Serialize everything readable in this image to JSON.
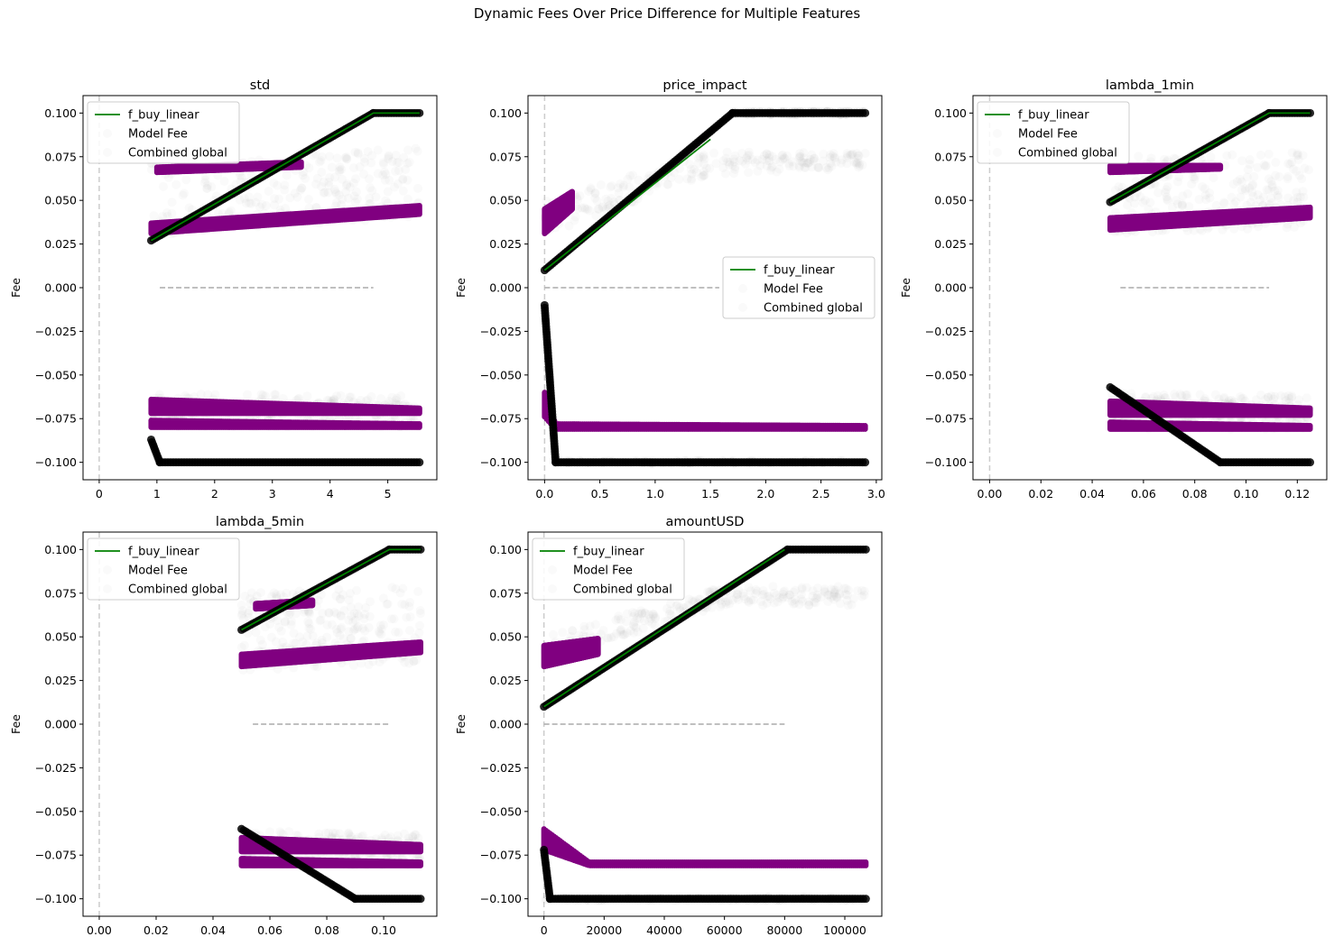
{
  "figure": {
    "title": "Dynamic Fees Over Price Difference for Multiple Features"
  },
  "colors": {
    "f_buy_linear": "#008000",
    "model_fee": "#800080",
    "combined_global": "#000000",
    "zero_line": "#aaaaaa",
    "vline": "#cccccc"
  },
  "chart_data": [
    {
      "type": "scatter",
      "title": "std",
      "xlabel": "",
      "ylabel": "Fee",
      "xlim": [
        -0.28,
        5.85
      ],
      "ylim": [
        -0.11,
        0.11
      ],
      "xticks": [
        "0",
        "1",
        "2",
        "3",
        "4",
        "5"
      ],
      "xtick_values": [
        0,
        1,
        2,
        3,
        4,
        5
      ],
      "yticks": [
        "0.100",
        "0.075",
        "0.050",
        "0.025",
        "0.000",
        "−0.025",
        "−0.050",
        "−0.075",
        "−0.100"
      ],
      "legend": {
        "placement": "upper-left",
        "entries": [
          "f_buy_linear",
          "Model Fee",
          "Combined global"
        ]
      },
      "vline_x": 0,
      "series": [
        {
          "name": "f_buy_linear",
          "kind": "line",
          "x": [
            0.9,
            4.75,
            5.55
          ],
          "y": [
            0.027,
            0.1,
            0.1
          ]
        },
        {
          "name": "Combined global",
          "kind": "points",
          "x": [
            0.9,
            4.75,
            5.55
          ],
          "y": [
            0.027,
            0.1,
            0.1
          ]
        },
        {
          "name": "Combined global sell",
          "kind": "points",
          "x": [
            0.9,
            1.05,
            5.55
          ],
          "y": [
            -0.087,
            -0.1,
            -0.1
          ]
        },
        {
          "name": "Model Fee band",
          "kind": "band",
          "x": [
            0.9,
            5.55
          ],
          "ylow": [
            0.031,
            0.042
          ],
          "yhigh": [
            0.037,
            0.047
          ]
        },
        {
          "name": "Model Fee band 2",
          "kind": "band",
          "x": [
            1.0,
            3.5
          ],
          "ylow": [
            0.066,
            0.069
          ],
          "yhigh": [
            0.069,
            0.072
          ]
        },
        {
          "name": "Model Fee sell",
          "kind": "band",
          "x": [
            0.9,
            5.55
          ],
          "ylow": [
            -0.08,
            -0.08
          ],
          "yhigh": [
            -0.076,
            -0.078
          ]
        },
        {
          "name": "Model Fee sell 2",
          "kind": "band",
          "x": [
            0.9,
            5.55
          ],
          "ylow": [
            -0.072,
            -0.072
          ],
          "yhigh": [
            -0.064,
            -0.069
          ]
        },
        {
          "name": "faint buy",
          "kind": "faint",
          "x": [
            0.9,
            5.55
          ],
          "ylow": [
            0.03,
            0.04
          ],
          "yhigh": [
            0.075,
            0.08
          ]
        },
        {
          "name": "faint sell",
          "kind": "faint",
          "x": [
            0.9,
            5.55
          ],
          "ylow": [
            -0.08,
            -0.08
          ],
          "yhigh": [
            -0.06,
            -0.062
          ]
        },
        {
          "name": "zero",
          "kind": "zero",
          "x": [
            1.05,
            4.75
          ]
        }
      ]
    },
    {
      "type": "scatter",
      "title": "price_impact",
      "xlabel": "",
      "ylabel": "Fee",
      "xlim": [
        -0.15,
        3.05
      ],
      "ylim": [
        -0.11,
        0.11
      ],
      "xticks": [
        "0.0",
        "0.5",
        "1.0",
        "1.5",
        "2.0",
        "2.5",
        "3.0"
      ],
      "xtick_values": [
        0,
        0.5,
        1.0,
        1.5,
        2.0,
        2.5,
        3.0
      ],
      "yticks": [
        "0.100",
        "0.075",
        "0.050",
        "0.025",
        "0.000",
        "−0.025",
        "−0.050",
        "−0.075",
        "−0.100"
      ],
      "legend": {
        "placement": "center-right",
        "entries": [
          "f_buy_linear",
          "Model Fee",
          "Combined global"
        ]
      },
      "vline_x": 0,
      "series": [
        {
          "name": "f_buy_linear",
          "kind": "line",
          "x": [
            0.0,
            1.5
          ],
          "y": [
            0.01,
            0.085
          ]
        },
        {
          "name": "Combined global",
          "kind": "points",
          "x": [
            0.0,
            1.7,
            2.9
          ],
          "y": [
            0.01,
            0.1,
            0.1
          ]
        },
        {
          "name": "Combined global sell",
          "kind": "points",
          "x": [
            0.0,
            0.1,
            2.9
          ],
          "y": [
            -0.01,
            -0.1,
            -0.1
          ]
        },
        {
          "name": "Model Fee band",
          "kind": "band",
          "x": [
            0.0,
            0.25
          ],
          "ylow": [
            0.031,
            0.045
          ],
          "yhigh": [
            0.045,
            0.055
          ]
        },
        {
          "name": "Model Fee sell",
          "kind": "band",
          "x": [
            0.0,
            0.1,
            2.9
          ],
          "ylow": [
            -0.074,
            -0.081,
            -0.081
          ],
          "yhigh": [
            -0.06,
            -0.078,
            -0.079
          ]
        },
        {
          "name": "faint buy",
          "kind": "faint",
          "x": [
            0.0,
            1.5,
            2.9
          ],
          "ylow": [
            0.03,
            0.065,
            0.068
          ],
          "yhigh": [
            0.05,
            0.078,
            0.077
          ]
        },
        {
          "name": "faint buy top",
          "kind": "faint",
          "x": [
            1.7,
            2.9
          ],
          "ylow": [
            0.099,
            0.099
          ],
          "yhigh": [
            0.101,
            0.101
          ]
        },
        {
          "name": "faint sell",
          "kind": "faint",
          "x": [
            0.1,
            2.9
          ],
          "ylow": [
            -0.101,
            -0.101
          ],
          "yhigh": [
            -0.099,
            -0.099
          ]
        },
        {
          "name": "zero",
          "kind": "zero",
          "x": [
            0.0,
            1.58
          ]
        }
      ]
    },
    {
      "type": "scatter",
      "title": "lambda_1min",
      "xlabel": "",
      "ylabel": "Fee",
      "xlim": [
        -0.0065,
        0.1315
      ],
      "ylim": [
        -0.11,
        0.11
      ],
      "xticks": [
        "0.00",
        "0.02",
        "0.04",
        "0.06",
        "0.08",
        "0.10",
        "0.12"
      ],
      "xtick_values": [
        0,
        0.02,
        0.04,
        0.06,
        0.08,
        0.1,
        0.12
      ],
      "yticks": [
        "0.100",
        "0.075",
        "0.050",
        "0.025",
        "0.000",
        "−0.025",
        "−0.050",
        "−0.075",
        "−0.100"
      ],
      "legend": {
        "placement": "upper-left",
        "entries": [
          "f_buy_linear",
          "Model Fee",
          "Combined global"
        ]
      },
      "vline_x": 0,
      "series": [
        {
          "name": "f_buy_linear",
          "kind": "line",
          "x": [
            0.047,
            0.109,
            0.125
          ],
          "y": [
            0.049,
            0.1,
            0.1
          ]
        },
        {
          "name": "Combined global",
          "kind": "points",
          "x": [
            0.047,
            0.109,
            0.125
          ],
          "y": [
            0.049,
            0.1,
            0.1
          ]
        },
        {
          "name": "Combined global sell",
          "kind": "points",
          "x": [
            0.047,
            0.09,
            0.125
          ],
          "y": [
            -0.057,
            -0.1,
            -0.1
          ]
        },
        {
          "name": "Model Fee band",
          "kind": "band",
          "x": [
            0.047,
            0.125
          ],
          "ylow": [
            0.033,
            0.04
          ],
          "yhigh": [
            0.04,
            0.046
          ]
        },
        {
          "name": "Model Fee band 2",
          "kind": "band",
          "x": [
            0.047,
            0.09
          ],
          "ylow": [
            0.066,
            0.068
          ],
          "yhigh": [
            0.07,
            0.07
          ]
        },
        {
          "name": "Model Fee sell",
          "kind": "band",
          "x": [
            0.047,
            0.125
          ],
          "ylow": [
            -0.081,
            -0.081
          ],
          "yhigh": [
            -0.077,
            -0.079
          ]
        },
        {
          "name": "Model Fee sell 2",
          "kind": "band",
          "x": [
            0.047,
            0.125
          ],
          "ylow": [
            -0.073,
            -0.073
          ],
          "yhigh": [
            -0.065,
            -0.069
          ]
        },
        {
          "name": "faint buy",
          "kind": "faint",
          "x": [
            0.047,
            0.125
          ],
          "ylow": [
            0.03,
            0.035
          ],
          "yhigh": [
            0.075,
            0.078
          ]
        },
        {
          "name": "faint sell",
          "kind": "faint",
          "x": [
            0.047,
            0.125
          ],
          "ylow": [
            -0.081,
            -0.081
          ],
          "yhigh": [
            -0.06,
            -0.062
          ]
        },
        {
          "name": "zero",
          "kind": "zero",
          "x": [
            0.051,
            0.109
          ]
        }
      ]
    },
    {
      "type": "scatter",
      "title": "lambda_5min",
      "xlabel": "",
      "ylabel": "Fee",
      "xlim": [
        -0.0057,
        0.1187
      ],
      "ylim": [
        -0.11,
        0.11
      ],
      "xticks": [
        "0.00",
        "0.02",
        "0.04",
        "0.06",
        "0.08",
        "0.10"
      ],
      "xtick_values": [
        0,
        0.02,
        0.04,
        0.06,
        0.08,
        0.1
      ],
      "yticks": [
        "0.100",
        "0.075",
        "0.050",
        "0.025",
        "0.000",
        "−0.025",
        "−0.050",
        "−0.075",
        "−0.100"
      ],
      "legend": {
        "placement": "upper-left",
        "entries": [
          "f_buy_linear",
          "Model Fee",
          "Combined global"
        ]
      },
      "vline_x": 0,
      "series": [
        {
          "name": "f_buy_linear",
          "kind": "line",
          "x": [
            0.05,
            0.102,
            0.113
          ],
          "y": [
            0.054,
            0.1,
            0.1
          ]
        },
        {
          "name": "Combined global",
          "kind": "points",
          "x": [
            0.05,
            0.102,
            0.113
          ],
          "y": [
            0.054,
            0.1,
            0.1
          ]
        },
        {
          "name": "Combined global sell",
          "kind": "points",
          "x": [
            0.05,
            0.09,
            0.113
          ],
          "y": [
            -0.06,
            -0.1,
            -0.1
          ]
        },
        {
          "name": "Model Fee band",
          "kind": "band",
          "x": [
            0.05,
            0.113
          ],
          "ylow": [
            0.033,
            0.041
          ],
          "yhigh": [
            0.04,
            0.047
          ]
        },
        {
          "name": "Model Fee band 2",
          "kind": "band",
          "x": [
            0.055,
            0.075
          ],
          "ylow": [
            0.066,
            0.068
          ],
          "yhigh": [
            0.069,
            0.071
          ]
        },
        {
          "name": "Model Fee sell",
          "kind": "band",
          "x": [
            0.05,
            0.113
          ],
          "ylow": [
            -0.081,
            -0.081
          ],
          "yhigh": [
            -0.077,
            -0.079
          ]
        },
        {
          "name": "Model Fee sell 2",
          "kind": "band",
          "x": [
            0.05,
            0.113
          ],
          "ylow": [
            -0.073,
            -0.073
          ],
          "yhigh": [
            -0.065,
            -0.069
          ]
        },
        {
          "name": "faint buy",
          "kind": "faint",
          "x": [
            0.05,
            0.113
          ],
          "ylow": [
            0.03,
            0.035
          ],
          "yhigh": [
            0.075,
            0.079
          ]
        },
        {
          "name": "faint sell",
          "kind": "faint",
          "x": [
            0.05,
            0.113
          ],
          "ylow": [
            -0.081,
            -0.081
          ],
          "yhigh": [
            -0.061,
            -0.063
          ]
        },
        {
          "name": "zero",
          "kind": "zero",
          "x": [
            0.054,
            0.102
          ]
        }
      ]
    },
    {
      "type": "scatter",
      "title": "amountUSD",
      "xlabel": "",
      "ylabel": "Fee",
      "xlim": [
        -5300,
        112300
      ],
      "ylim": [
        -0.11,
        0.11
      ],
      "xticks": [
        "0",
        "20000",
        "40000",
        "60000",
        "80000",
        "100000"
      ],
      "xtick_values": [
        0,
        20000,
        40000,
        60000,
        80000,
        100000
      ],
      "yticks": [
        "0.100",
        "0.075",
        "0.050",
        "0.025",
        "0.000",
        "−0.025",
        "−0.050",
        "−0.075",
        "−0.100"
      ],
      "legend": {
        "placement": "upper-left",
        "entries": [
          "f_buy_linear",
          "Model Fee",
          "Combined global"
        ]
      },
      "vline_x": 0,
      "series": [
        {
          "name": "f_buy_linear",
          "kind": "line",
          "x": [
            0,
            80000
          ],
          "y": [
            0.01,
            0.1
          ]
        },
        {
          "name": "Combined global",
          "kind": "points",
          "x": [
            0,
            81000,
            107000
          ],
          "y": [
            0.01,
            0.1,
            0.1
          ]
        },
        {
          "name": "Combined global sell",
          "kind": "points",
          "x": [
            0,
            2000,
            107000
          ],
          "y": [
            -0.072,
            -0.1,
            -0.1
          ]
        },
        {
          "name": "Model Fee band",
          "kind": "band",
          "x": [
            0,
            18000
          ],
          "ylow": [
            0.033,
            0.04
          ],
          "yhigh": [
            0.045,
            0.049
          ]
        },
        {
          "name": "Model Fee sell",
          "kind": "band",
          "x": [
            0,
            15000,
            107000
          ],
          "ylow": [
            -0.072,
            -0.081,
            -0.081
          ],
          "yhigh": [
            -0.06,
            -0.079,
            -0.079
          ]
        },
        {
          "name": "faint buy",
          "kind": "faint",
          "x": [
            0,
            60000,
            107000
          ],
          "ylow": [
            0.035,
            0.068,
            0.068
          ],
          "yhigh": [
            0.05,
            0.079,
            0.079
          ]
        },
        {
          "name": "faint sell",
          "kind": "faint",
          "x": [
            0,
            107000
          ],
          "ylow": [
            -0.101,
            -0.101
          ],
          "yhigh": [
            -0.099,
            -0.099
          ]
        },
        {
          "name": "zero",
          "kind": "zero",
          "x": [
            0,
            80000
          ]
        }
      ]
    }
  ]
}
